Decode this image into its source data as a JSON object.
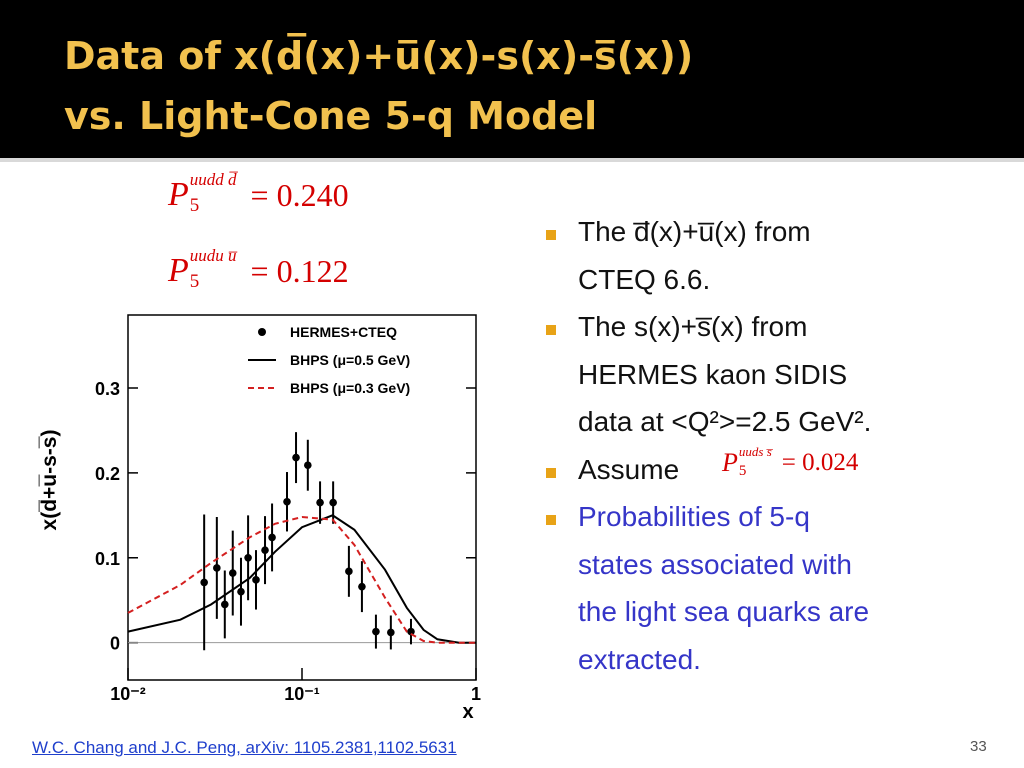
{
  "header": {
    "title_lines": [
      "Data of x(d̅(x)+u̅(x)-s(x)-s̅(x))",
      "vs. Light-Cone 5-q Model"
    ]
  },
  "formulas": [
    {
      "symbol": "P",
      "sub": "5",
      "sup": "uudd d̅",
      "rhs": "= 0.240"
    },
    {
      "symbol": "P",
      "sub": "5",
      "sup": "uudu u̅",
      "rhs": "= 0.122"
    }
  ],
  "bullets": [
    {
      "lines": [
        "The d̅(x)+u̅(x) from",
        "CTEQ 6.6."
      ]
    },
    {
      "lines": [
        "The s(x)+s̅(x) from",
        "HERMES kaon SIDIS",
        "data at <Q²>=2.5 GeV²."
      ]
    },
    {
      "lines": [
        "Assume"
      ],
      "formula": {
        "symbol": "P",
        "sub": "5",
        "sup": "uuds s̅",
        "rhs": "= 0.024"
      }
    },
    {
      "lines": [
        "Probabilities of 5-q",
        "states associated with",
        "the light sea quarks are",
        "extracted."
      ],
      "color": "#3535c8"
    }
  ],
  "footer": {
    "citation": "W.C. Chang and J.C. Peng, arXiv: 1105.2381,1102.5631",
    "page_number": "33"
  },
  "chart_data": {
    "type": "line",
    "xlabel": "x",
    "ylabel": "x(d̅+u̅-s-s̅)",
    "xscale": "log",
    "xlim": [
      0.01,
      1
    ],
    "xticks": [
      {
        "value": 0.01,
        "label": "10⁻²"
      },
      {
        "value": 0.1,
        "label": "10⁻¹"
      },
      1
    ],
    "ylim": [
      -0.044,
      0.386
    ],
    "yticks": [
      0,
      0.1,
      0.2,
      0.3
    ],
    "zero_line": true,
    "legend": "upper left",
    "series": [
      {
        "name": "HERMES+CTEQ",
        "style": "errorbar",
        "color": "#000000",
        "x": [
          0.0274,
          0.0324,
          0.036,
          0.04,
          0.0446,
          0.049,
          0.0544,
          0.0613,
          0.0673,
          0.082,
          0.0924,
          0.108,
          0.127,
          0.151,
          0.186,
          0.221,
          0.266,
          0.324,
          0.423
        ],
        "values": [
          0.071,
          0.088,
          0.045,
          0.082,
          0.06,
          0.1,
          0.074,
          0.109,
          0.124,
          0.166,
          0.218,
          0.209,
          0.165,
          0.165,
          0.084,
          0.066,
          0.013,
          0.012,
          0.013
        ],
        "errors": [
          0.08,
          0.06,
          0.04,
          0.05,
          0.04,
          0.05,
          0.035,
          0.04,
          0.04,
          0.035,
          0.03,
          0.03,
          0.025,
          0.025,
          0.03,
          0.03,
          0.02,
          0.02,
          0.015
        ]
      },
      {
        "name": "BHPS (μ=0.5 GeV)",
        "style": "solid",
        "color": "#000000",
        "x": [
          0.01,
          0.02,
          0.03,
          0.05,
          0.07,
          0.1,
          0.15,
          0.2,
          0.3,
          0.4,
          0.5,
          0.6,
          0.8,
          1
        ],
        "values": [
          0.013,
          0.027,
          0.045,
          0.076,
          0.107,
          0.136,
          0.15,
          0.133,
          0.086,
          0.041,
          0.015,
          0.004,
          0,
          0
        ]
      },
      {
        "name": "BHPS (μ=0.3 GeV)",
        "style": "dashed",
        "color": "#d42020",
        "x": [
          0.01,
          0.02,
          0.03,
          0.05,
          0.07,
          0.1,
          0.15,
          0.2,
          0.3,
          0.4,
          0.5,
          0.6,
          0.8,
          1
        ],
        "values": [
          0.035,
          0.068,
          0.094,
          0.124,
          0.14,
          0.148,
          0.145,
          0.115,
          0.053,
          0.013,
          0.002,
          0,
          0,
          0
        ]
      }
    ]
  }
}
